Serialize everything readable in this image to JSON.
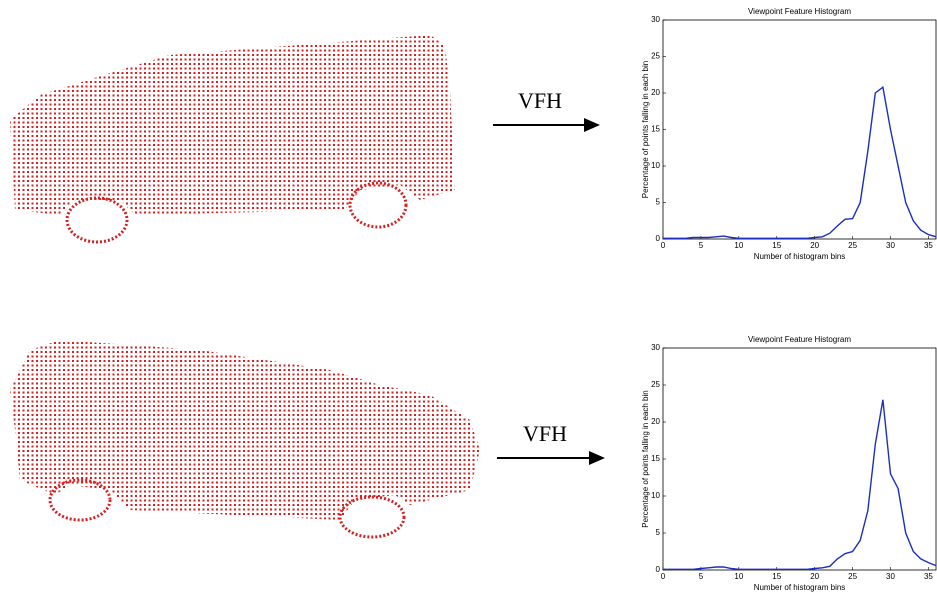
{
  "arrows": [
    {
      "label": "VFH"
    },
    {
      "label": "VFH"
    }
  ],
  "chart_data": [
    {
      "type": "line",
      "title": "Viewpoint Feature Histogram",
      "x_label": "Number of histogram bins",
      "y_label": "Percentage of points falling in each bin",
      "x": [
        0,
        1,
        2,
        3,
        4,
        5,
        6,
        7,
        8,
        9,
        10,
        11,
        12,
        13,
        14,
        15,
        16,
        17,
        18,
        19,
        20,
        21,
        22,
        23,
        24,
        25,
        26,
        27,
        28,
        29,
        30,
        31,
        32,
        33,
        34,
        35,
        36
      ],
      "values": [
        0.1,
        0.1,
        0.1,
        0.1,
        0.2,
        0.2,
        0.2,
        0.3,
        0.4,
        0.2,
        0.1,
        0.1,
        0.1,
        0.1,
        0.1,
        0.1,
        0.1,
        0.1,
        0.1,
        0.1,
        0.2,
        0.3,
        0.8,
        1.8,
        2.7,
        2.8,
        5,
        12,
        20,
        20.8,
        15,
        10,
        5,
        2.5,
        1.2,
        0.6,
        0.3
      ],
      "color": "#1a2fbf",
      "xlim": [
        0,
        36
      ],
      "ylim": [
        0,
        30
      ],
      "xticks": [
        0,
        5,
        10,
        15,
        20,
        25,
        30,
        35
      ],
      "yticks": [
        0,
        5,
        10,
        15,
        20,
        25,
        30
      ]
    },
    {
      "type": "line",
      "title": "Viewpoint Feature Histogram",
      "x_label": "Number of histogram bins",
      "y_label": "Percentage of points falling in each bin",
      "x": [
        0,
        1,
        2,
        3,
        4,
        5,
        6,
        7,
        8,
        9,
        10,
        11,
        12,
        13,
        14,
        15,
        16,
        17,
        18,
        19,
        20,
        21,
        22,
        23,
        24,
        25,
        26,
        27,
        28,
        29,
        30,
        31,
        32,
        33,
        34,
        35,
        36
      ],
      "values": [
        0.1,
        0.1,
        0.1,
        0.1,
        0.1,
        0.2,
        0.3,
        0.4,
        0.4,
        0.2,
        0.1,
        0.1,
        0.1,
        0.1,
        0.1,
        0.1,
        0.1,
        0.1,
        0.1,
        0.1,
        0.2,
        0.3,
        0.5,
        1.5,
        2.2,
        2.5,
        4,
        8,
        17,
        23,
        13,
        11,
        5,
        2.5,
        1.5,
        1,
        0.6
      ],
      "color": "#1a2fbf",
      "xlim": [
        0,
        36
      ],
      "ylim": [
        0,
        30
      ],
      "xticks": [
        0,
        5,
        10,
        15,
        20,
        25,
        30,
        35
      ],
      "yticks": [
        0,
        5,
        10,
        15,
        20,
        25,
        30
      ]
    }
  ]
}
